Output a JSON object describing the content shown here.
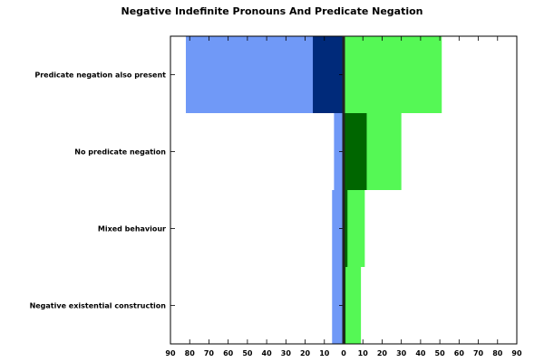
{
  "chart_data": {
    "type": "bar",
    "orientation": "horizontal",
    "layout": "diverging",
    "title": "Negative Indefinite Pronouns And Predicate Negation",
    "xlabel": "",
    "ylabel": "",
    "xlim": [
      -90,
      90
    ],
    "x_ticks": [
      -90,
      -80,
      -70,
      -60,
      -50,
      -40,
      -30,
      -20,
      -10,
      0,
      10,
      20,
      30,
      40,
      50,
      60,
      70,
      80,
      90
    ],
    "x_tick_labels": [
      "90",
      "80",
      "70",
      "60",
      "50",
      "40",
      "30",
      "20",
      "10",
      "0",
      "10",
      "20",
      "30",
      "40",
      "50",
      "60",
      "70",
      "80",
      "90"
    ],
    "categories": [
      "Predicate negation also present",
      "No predicate negation",
      "Mixed behaviour",
      "Negative existential construction"
    ],
    "series": [
      {
        "side": "left",
        "color": "#7099f7",
        "values": [
          82,
          5,
          6,
          6
        ]
      },
      {
        "side": "left",
        "color": "#002a7a",
        "values": [
          16,
          0,
          0,
          0
        ]
      },
      {
        "side": "right",
        "color": "#55f855",
        "values": [
          51,
          30,
          11,
          9
        ]
      },
      {
        "side": "right",
        "color": "#006600",
        "values": [
          0,
          12,
          2,
          1
        ]
      }
    ],
    "grid": false,
    "legend": "none"
  }
}
